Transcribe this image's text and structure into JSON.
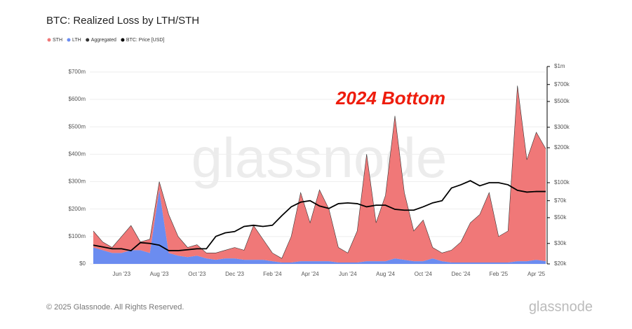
{
  "chart_data": {
    "type": "stacked-area-line",
    "title": "BTC: Realized Loss by LTH/STH",
    "annotation": "2024 Bottom",
    "watermark": "glassnode",
    "footer": "© 2025 Glassnode. All Rights Reserved.",
    "logo": "glassnode",
    "categories": [
      null,
      null,
      null,
      "Jun '23",
      null,
      null,
      null,
      "Aug '23",
      null,
      null,
      null,
      "Oct '23",
      null,
      null,
      null,
      "Dec '23",
      null,
      null,
      null,
      "Feb '24",
      null,
      null,
      null,
      "Apr '24",
      null,
      null,
      null,
      "Jun '24",
      null,
      null,
      null,
      "Aug '24",
      null,
      null,
      null,
      "Oct '24",
      null,
      null,
      null,
      "Dec '24",
      null,
      null,
      null,
      "Feb '25",
      null,
      null,
      null,
      "Apr '25",
      null
    ],
    "series": [
      {
        "name": "STH",
        "color": "#f07878",
        "stack": true,
        "values": [
          60,
          30,
          20,
          60,
          90,
          30,
          50,
          30,
          140,
          70,
          35,
          40,
          20,
          25,
          30,
          40,
          35,
          125,
          75,
          30,
          15,
          95,
          250,
          140,
          260,
          190,
          55,
          35,
          115,
          390,
          140,
          240,
          520,
          245,
          110,
          150,
          40,
          30,
          45,
          75,
          145,
          175,
          255,
          95,
          115,
          640,
          370,
          465,
          410
        ]
      },
      {
        "name": "LTH",
        "color": "#6b8cf0",
        "stack": true,
        "values": [
          60,
          50,
          40,
          40,
          50,
          50,
          40,
          270,
          40,
          30,
          25,
          30,
          20,
          15,
          20,
          20,
          15,
          15,
          15,
          10,
          5,
          5,
          10,
          10,
          10,
          10,
          5,
          5,
          5,
          10,
          10,
          10,
          20,
          15,
          10,
          10,
          20,
          10,
          5,
          5,
          5,
          5,
          5,
          5,
          5,
          10,
          10,
          15,
          10
        ]
      },
      {
        "name": "Aggregated",
        "color": "#333333",
        "values": [
          120,
          80,
          60,
          100,
          140,
          80,
          90,
          300,
          180,
          100,
          60,
          70,
          40,
          40,
          50,
          60,
          50,
          140,
          90,
          40,
          20,
          100,
          260,
          150,
          270,
          200,
          60,
          40,
          120,
          400,
          150,
          250,
          540,
          260,
          120,
          160,
          60,
          40,
          50,
          80,
          150,
          180,
          260,
          100,
          120,
          650,
          380,
          480,
          420
        ]
      },
      {
        "name": "BTC: Price [USD]",
        "color": "#000000",
        "axis": "y2",
        "values": [
          29000,
          28000,
          27000,
          27000,
          26000,
          30500,
          30000,
          29000,
          26000,
          26000,
          26500,
          27000,
          27000,
          34500,
          37000,
          38000,
          42000,
          43000,
          42000,
          43000,
          52000,
          62000,
          68000,
          70000,
          63000,
          60000,
          66000,
          67000,
          66000,
          62000,
          64000,
          64000,
          59000,
          58000,
          58000,
          62000,
          67000,
          70000,
          90000,
          96000,
          104000,
          94000,
          100000,
          100000,
          96000,
          86000,
          83000,
          84000,
          84000
        ]
      }
    ],
    "ylim": [
      0,
      720
    ],
    "yticks": [
      {
        "value": 0,
        "label": "$0"
      },
      {
        "value": 100,
        "label": "$100m"
      },
      {
        "value": 200,
        "label": "$200m"
      },
      {
        "value": 300,
        "label": "$300m"
      },
      {
        "value": 400,
        "label": "$400m"
      },
      {
        "value": 500,
        "label": "$500m"
      },
      {
        "value": 600,
        "label": "$600m"
      },
      {
        "value": 700,
        "label": "$700m"
      }
    ],
    "y2lim": [
      20000,
      1000000
    ],
    "y2log": true,
    "y2ticks": [
      {
        "value": 20000,
        "label": "$20k"
      },
      {
        "value": 30000,
        "label": "$30k"
      },
      {
        "value": 50000,
        "label": "$50k"
      },
      {
        "value": 70000,
        "label": "$70k"
      },
      {
        "value": 100000,
        "label": "$100k"
      },
      {
        "value": 200000,
        "label": "$200k"
      },
      {
        "value": 300000,
        "label": "$300k"
      },
      {
        "value": 500000,
        "label": "$500k"
      },
      {
        "value": 700000,
        "label": "$700k"
      },
      {
        "value": 1000000,
        "label": "$1m"
      }
    ],
    "grid": true
  }
}
